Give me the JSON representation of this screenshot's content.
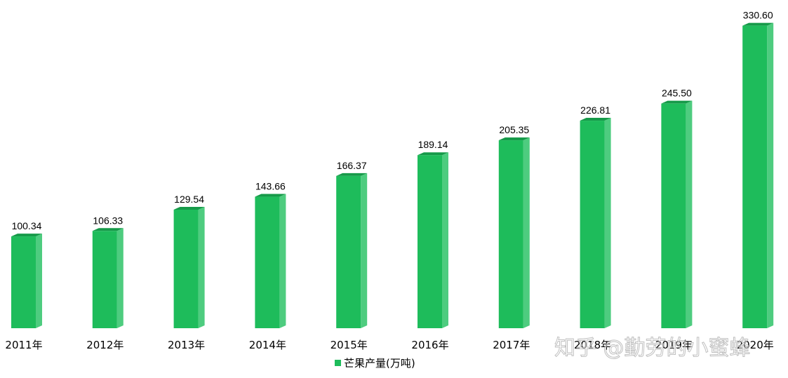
{
  "chart_data": {
    "type": "bar",
    "categories": [
      "2011年",
      "2012年",
      "2013年",
      "2014年",
      "2015年",
      "2016年",
      "2017年",
      "2018年",
      "2019年",
      "2020年"
    ],
    "series": [
      {
        "name": "芒果产量(万吨)",
        "values": [
          100.34,
          106.33,
          129.54,
          143.66,
          166.37,
          189.14,
          205.35,
          226.81,
          245.5,
          330.6
        ],
        "value_labels": [
          "100.34",
          "106.33",
          "129.54",
          "143.66",
          "166.37",
          "189.14",
          "205.35",
          "226.81",
          "245.50",
          "330.60"
        ]
      }
    ],
    "title": "",
    "xlabel": "",
    "ylabel": "",
    "legend": "bottom-center",
    "grid": false,
    "style": "3d-column",
    "colors": {
      "front": "#1ebc5b",
      "side": "#4ecc7f",
      "top": "#169a49"
    }
  },
  "legend": {
    "label": "芒果产量(万吨)"
  },
  "watermark": {
    "text": "知乎 @勤劳的小蜜蜂"
  }
}
